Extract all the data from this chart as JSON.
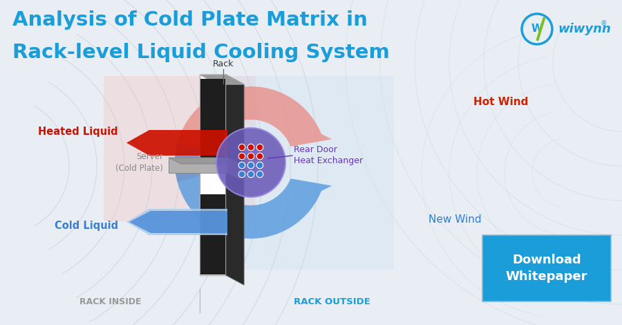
{
  "title_line1": "Analysis of Cold Plate Matrix in",
  "title_line2": "Rack-level Liquid Cooling System",
  "title_color": "#1B9DD9",
  "bg_color": "#E8EEF3",
  "label_rack": "Rack",
  "label_rack_inside": "RACK INSIDE",
  "label_rack_outside": "RACK OUTSIDE",
  "label_heated_liquid": "Heated Liquid",
  "label_cold_liquid": "Cold Liquid",
  "label_hot_wind": "Hot Wind",
  "label_new_wind": "New Wind",
  "label_server": "Server\n(Cold Plate)",
  "label_rear_door": "Rear Door\nHeat Exchanger",
  "label_download": "Download\nWhitepaper",
  "download_bg": "#1B9DD9",
  "hot_wind_color": "#E05A5A",
  "cold_wind_color": "#2B7FD4",
  "heated_liquid_color": "#CC1100",
  "cold_liquid_color": "#3A7FD4",
  "rear_door_circle_bg": "#6B5BB8",
  "red_dot_color": "#CC1100",
  "blue_dot_color": "#3A7FD4",
  "wiwynn_teal": "#1B9DD9",
  "wiwynn_green": "#77C11E",
  "curve_color": "#C8CDD5",
  "rack_front_color": "#F5F5F5",
  "rack_side_color": "#2A2A2A",
  "rack_top_color": "#999999",
  "rack_mid_white": "#FFFFFF",
  "server_color": "#888888"
}
